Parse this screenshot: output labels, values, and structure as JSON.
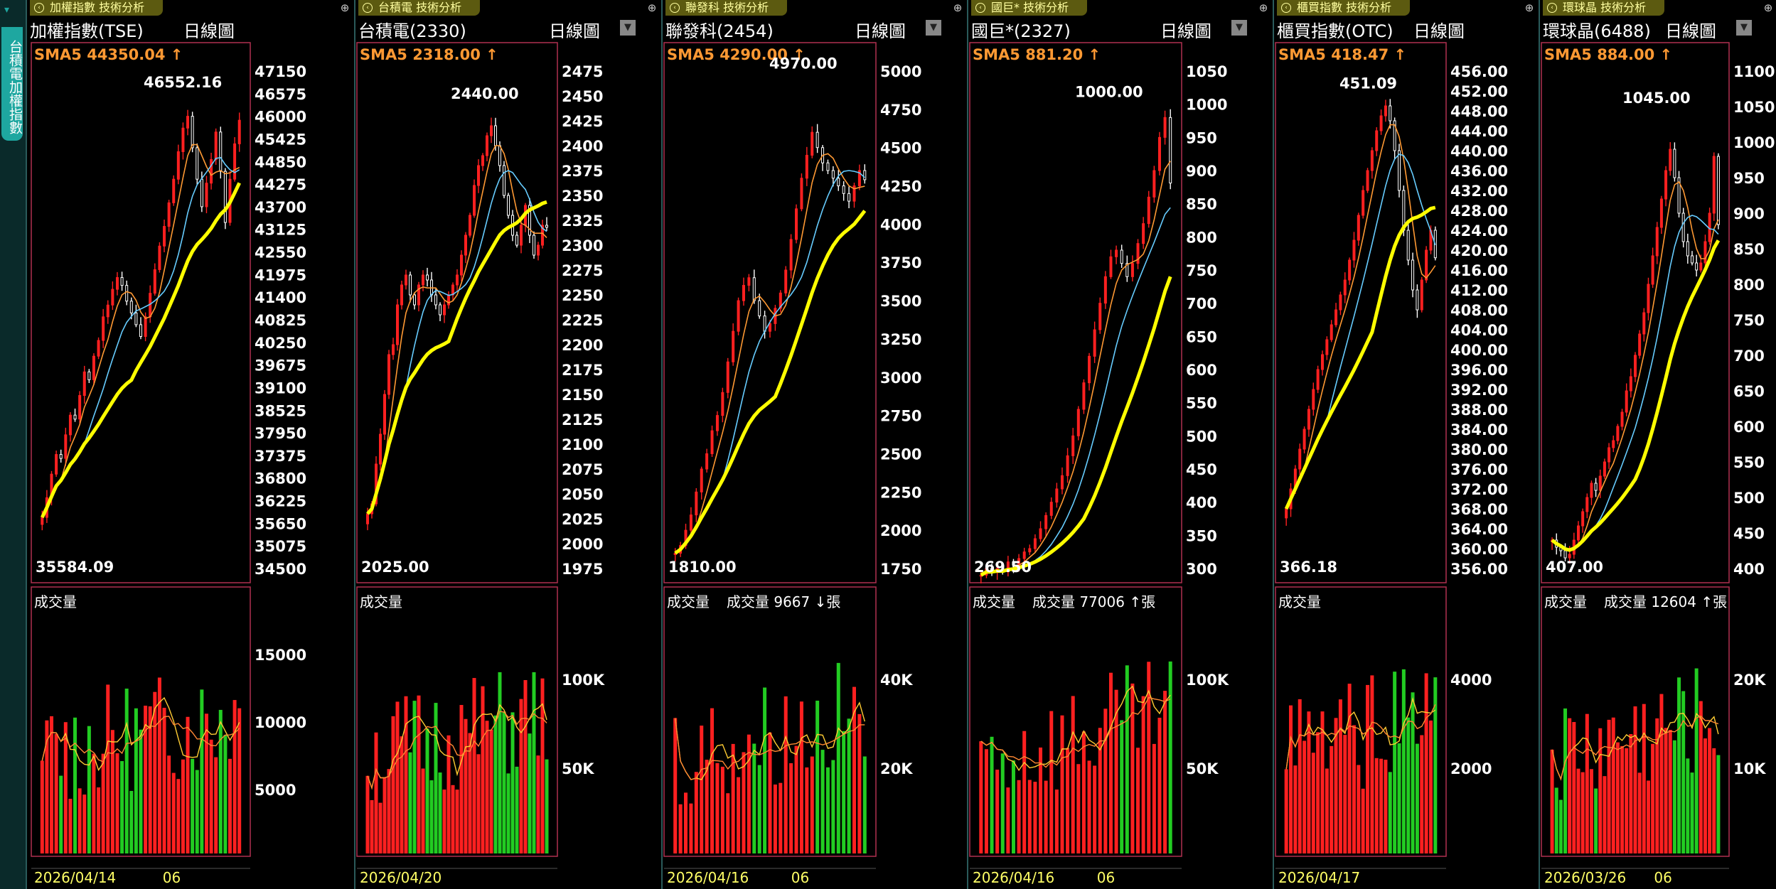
{
  "sidebar": {
    "tab_label": "台積電加權指數"
  },
  "colors": {
    "up": "#ff2020",
    "down": "#20ff20",
    "sma5": "#ff9933",
    "sma10": "#66ccff",
    "sma20": "#ffff00",
    "frame": "#b03050",
    "axis": "#ffffff"
  },
  "panels": [
    {
      "id": "p1",
      "tab": "加權指數 技術分析",
      "title": "加權指數(TSE)",
      "kind": "日線圖",
      "has_dropdown": false,
      "sma_label": "SMA5",
      "sma_value": "44350.04",
      "sma_dir": "up",
      "price_ticks": [
        "47150",
        "46575",
        "46000",
        "45425",
        "44850",
        "44275",
        "43700",
        "43125",
        "42550",
        "41975",
        "41400",
        "40825",
        "40250",
        "39675",
        "39100",
        "38525",
        "37950",
        "37375",
        "36800",
        "36225",
        "35650",
        "35075",
        "34500"
      ],
      "high_label": "46552.16",
      "low_label": "35584.09",
      "vol_title": "成交量",
      "vol_value": "",
      "vol_unit": "",
      "vol_dir": "",
      "vol_ticks": [
        "15000",
        "10000",
        "5000"
      ],
      "date_start": "2026/04/14",
      "date_mid": "06"
    },
    {
      "id": "p2",
      "tab": "台積電 技術分析",
      "title": "台積電(2330)",
      "kind": "日線圖",
      "has_dropdown": true,
      "sma_label": "SMA5",
      "sma_value": "2318.00",
      "sma_dir": "up",
      "price_ticks": [
        "2475",
        "2450",
        "2425",
        "2400",
        "2375",
        "2350",
        "2325",
        "2300",
        "2275",
        "2250",
        "2225",
        "2200",
        "2175",
        "2150",
        "2125",
        "2100",
        "2075",
        "2050",
        "2025",
        "2000",
        "1975"
      ],
      "high_label": "2440.00",
      "low_label": "2025.00",
      "vol_title": "成交量",
      "vol_value": "",
      "vol_unit": "",
      "vol_dir": "",
      "vol_ticks": [
        "100K",
        "50K"
      ],
      "date_start": "2026/04/20",
      "date_mid": ""
    },
    {
      "id": "p3",
      "tab": "聯發科 技術分析",
      "title": "聯發科(2454)",
      "kind": "日線圖",
      "has_dropdown": true,
      "sma_label": "SMA5",
      "sma_value": "4290.00",
      "sma_dir": "up",
      "price_ticks": [
        "5000",
        "4750",
        "4500",
        "4250",
        "4000",
        "3750",
        "3500",
        "3250",
        "3000",
        "2750",
        "2500",
        "2250",
        "2000",
        "1750"
      ],
      "high_label": "4970.00",
      "low_label": "1810.00",
      "vol_title": "成交量",
      "vol_value": "9667",
      "vol_unit": "張",
      "vol_dir": "down",
      "vol_ticks": [
        "40K",
        "20K"
      ],
      "date_start": "2026/04/16",
      "date_mid": "06"
    },
    {
      "id": "p4",
      "tab": "國巨* 技術分析",
      "title": "國巨*(2327)",
      "kind": "日線圖",
      "has_dropdown": true,
      "sma_label": "SMA5",
      "sma_value": "881.20",
      "sma_dir": "up",
      "price_ticks": [
        "1050",
        "1000",
        "950",
        "900",
        "850",
        "800",
        "750",
        "700",
        "650",
        "600",
        "550",
        "500",
        "450",
        "400",
        "350",
        "300"
      ],
      "high_label": "1000.00",
      "low_label": "269.50",
      "vol_title": "成交量",
      "vol_value": "77006",
      "vol_unit": "張",
      "vol_dir": "up",
      "vol_ticks": [
        "100K",
        "50K"
      ],
      "date_start": "2026/04/16",
      "date_mid": "06"
    },
    {
      "id": "p5",
      "tab": "櫃買指數 技術分析",
      "title": "櫃買指數(OTC)",
      "kind": "日線圖",
      "has_dropdown": false,
      "sma_label": "SMA5",
      "sma_value": "418.47",
      "sma_dir": "up",
      "price_ticks": [
        "456.00",
        "452.00",
        "448.00",
        "444.00",
        "440.00",
        "436.00",
        "432.00",
        "428.00",
        "424.00",
        "420.00",
        "416.00",
        "412.00",
        "408.00",
        "404.00",
        "400.00",
        "396.00",
        "392.00",
        "388.00",
        "384.00",
        "380.00",
        "376.00",
        "372.00",
        "368.00",
        "364.00",
        "360.00",
        "356.00"
      ],
      "high_label": "451.09",
      "low_label": "366.18",
      "vol_title": "成交量",
      "vol_value": "",
      "vol_unit": "",
      "vol_dir": "",
      "vol_ticks": [
        "4000",
        "2000"
      ],
      "date_start": "2026/04/17",
      "date_mid": ""
    },
    {
      "id": "p6",
      "tab": "環球晶 技術分析",
      "title": "環球晶(6488)",
      "kind": "日線圖",
      "has_dropdown": true,
      "sma_label": "SMA5",
      "sma_value": "884.00",
      "sma_dir": "up",
      "price_ticks": [
        "1100",
        "1050",
        "1000",
        "950",
        "900",
        "850",
        "800",
        "750",
        "700",
        "650",
        "600",
        "550",
        "500",
        "450",
        "400"
      ],
      "high_label": "1045.00",
      "low_label": "407.00",
      "vol_title": "成交量",
      "vol_value": "12604",
      "vol_unit": "張",
      "vol_dir": "up",
      "vol_ticks": [
        "20K",
        "10K"
      ],
      "date_start": "2026/03/26",
      "date_mid": "06"
    }
  ],
  "chart_data": [
    {
      "type": "candlestick",
      "panel": "p1",
      "title": "加權指數(TSE)",
      "y_range": [
        34500,
        47150
      ],
      "high": 46552.16,
      "low": 35584.09,
      "close": [
        35800,
        36300,
        36900,
        37400,
        37300,
        37900,
        38400,
        38300,
        38900,
        39500,
        39300,
        39900,
        40300,
        40900,
        41200,
        41600,
        41900,
        41700,
        41300,
        41000,
        40700,
        40400,
        40900,
        41500,
        42100,
        42700,
        43200,
        43800,
        44400,
        45100,
        45700,
        46000,
        45200,
        44400,
        43700,
        44300,
        44900,
        45600,
        44600,
        43300,
        44400,
        45300,
        45900
      ]
    },
    {
      "type": "candlestick",
      "panel": "p2",
      "title": "台積電(2330)",
      "y_range": [
        1975,
        2475
      ],
      "high": 2440.0,
      "low": 2025.0,
      "close": [
        2030,
        2040,
        2080,
        2110,
        2150,
        2190,
        2200,
        2240,
        2260,
        2270,
        2250,
        2240,
        2260,
        2270,
        2265,
        2250,
        2240,
        2230,
        2240,
        2250,
        2260,
        2270,
        2290,
        2310,
        2330,
        2360,
        2380,
        2390,
        2410,
        2420,
        2400,
        2380,
        2350,
        2330,
        2310,
        2300,
        2320,
        2340,
        2310,
        2290,
        2300,
        2320,
        2318
      ]
    },
    {
      "type": "candlestick",
      "panel": "p3",
      "title": "聯發科(2454)",
      "y_range": [
        1750,
        5000
      ],
      "high": 4970.0,
      "low": 1810.0,
      "close": [
        1850,
        1900,
        2000,
        2100,
        2250,
        2400,
        2500,
        2650,
        2750,
        2900,
        3100,
        3300,
        3500,
        3600,
        3650,
        3500,
        3400,
        3300,
        3350,
        3450,
        3550,
        3700,
        3900,
        4100,
        4300,
        4450,
        4600,
        4500,
        4400,
        4350,
        4300,
        4250,
        4200,
        4150,
        4250,
        4350,
        4290
      ]
    },
    {
      "type": "candlestick",
      "panel": "p4",
      "title": "國巨*(2327)",
      "y_range": [
        300,
        1050
      ],
      "high": 1000.0,
      "low": 269.5,
      "close": [
        290,
        300,
        295,
        300,
        295,
        310,
        305,
        315,
        325,
        330,
        345,
        360,
        380,
        400,
        420,
        440,
        470,
        500,
        540,
        580,
        620,
        660,
        700,
        740,
        770,
        780,
        760,
        740,
        760,
        790,
        820,
        860,
        900,
        950,
        980,
        881.2
      ]
    },
    {
      "type": "candlestick",
      "panel": "p5",
      "title": "櫃買指數(OTC)",
      "y_range": [
        356,
        456
      ],
      "high": 451.09,
      "low": 366.18,
      "close": [
        368,
        372,
        376,
        380,
        384,
        388,
        392,
        396,
        399,
        402,
        405,
        408,
        411,
        414,
        418,
        422,
        427,
        432,
        436,
        440,
        444,
        447,
        449,
        446,
        440,
        432,
        424,
        418,
        412,
        408,
        414,
        420,
        424,
        418.47
      ]
    },
    {
      "type": "candlestick",
      "panel": "p6",
      "title": "環球晶(6488)",
      "y_range": [
        400,
        1100
      ],
      "high": 1045.0,
      "low": 407.0,
      "close": [
        440,
        430,
        425,
        415,
        420,
        440,
        460,
        480,
        500,
        520,
        510,
        530,
        550,
        570,
        580,
        600,
        620,
        650,
        670,
        700,
        730,
        760,
        800,
        840,
        880,
        920,
        960,
        990,
        950,
        900,
        860,
        840,
        830,
        820,
        830,
        860,
        900,
        980,
        884
      ]
    }
  ]
}
